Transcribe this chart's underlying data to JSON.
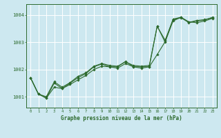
{
  "xlabel": "Graphe pression niveau de la mer (hPa)",
  "bg_color": "#cde8f0",
  "grid_color": "#ffffff",
  "line_color": "#2d6a2d",
  "ylim": [
    1000.6,
    1004.4
  ],
  "xlim": [
    -0.5,
    23.5
  ],
  "yticks": [
    1001,
    1002,
    1003,
    1004
  ],
  "xticks": [
    0,
    1,
    2,
    3,
    4,
    5,
    6,
    7,
    8,
    9,
    10,
    11,
    12,
    13,
    14,
    15,
    16,
    17,
    18,
    19,
    20,
    21,
    22,
    23
  ],
  "series1": [
    1001.7,
    1001.1,
    1000.95,
    1001.5,
    1001.3,
    1001.5,
    1001.7,
    1001.85,
    1002.1,
    1002.2,
    1002.1,
    1002.1,
    1002.3,
    1002.1,
    1002.1,
    1002.1,
    1003.6,
    1003.0,
    1003.85,
    1003.92,
    1003.72,
    1003.78,
    1003.82,
    1003.92
  ],
  "series2": [
    1001.7,
    1001.1,
    1000.95,
    1001.35,
    1001.3,
    1001.45,
    1001.62,
    1001.78,
    1002.0,
    1002.12,
    1002.1,
    1002.05,
    1002.22,
    1002.1,
    1002.05,
    1002.1,
    1002.55,
    1003.02,
    1003.78,
    1003.92,
    1003.75,
    1003.72,
    1003.78,
    1003.88
  ],
  "series3": [
    1001.7,
    1001.1,
    1001.0,
    1001.55,
    1001.35,
    1001.52,
    1001.75,
    1001.88,
    1002.12,
    1002.22,
    1002.15,
    1002.12,
    1002.28,
    1002.15,
    1002.12,
    1002.15,
    1003.58,
    1003.08,
    1003.83,
    1003.9,
    1003.73,
    1003.8,
    1003.83,
    1003.9
  ]
}
